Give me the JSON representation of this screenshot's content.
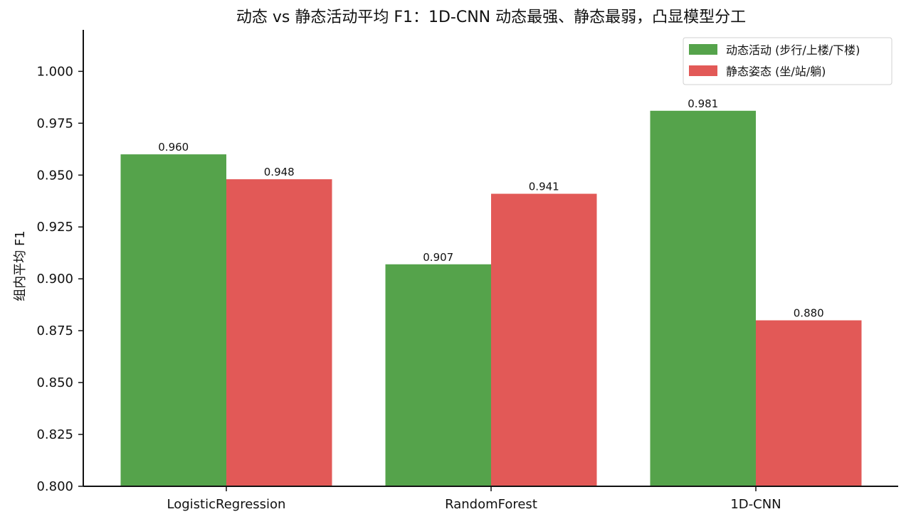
{
  "chart_data": {
    "type": "bar",
    "title": "动态 vs 静态活动平均 F1：1D-CNN 动态最强、静态最弱，凸显模型分工",
    "xlabel": "",
    "ylabel": "组内平均 F1",
    "ylim": [
      0.8,
      1.02
    ],
    "yticks": [
      "0.800",
      "0.825",
      "0.850",
      "0.875",
      "0.900",
      "0.925",
      "0.950",
      "0.975",
      "1.000"
    ],
    "categories": [
      "LogisticRegression",
      "RandomForest",
      "1D-CNN"
    ],
    "series": [
      {
        "name": "动态活动 (步行/上楼/下楼)",
        "values": [
          0.96,
          0.907,
          0.981
        ],
        "labels": [
          "0.960",
          "0.907",
          "0.981"
        ],
        "color": "#55a34b"
      },
      {
        "name": "静态姿态 (坐/站/躺)",
        "values": [
          0.948,
          0.941,
          0.88
        ],
        "labels": [
          "0.948",
          "0.941",
          "0.880"
        ],
        "color": "#e25957"
      }
    ],
    "legend_position": "top-right",
    "grid": false
  }
}
